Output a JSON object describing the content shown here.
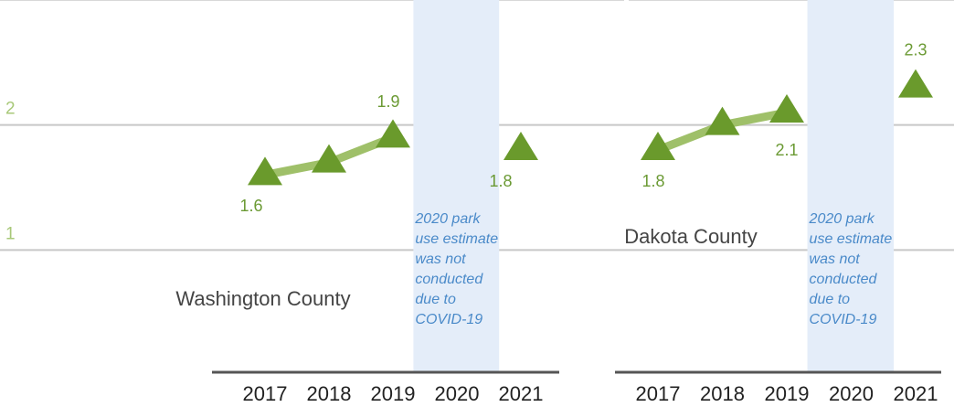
{
  "chart_data": [
    {
      "type": "line",
      "title": "Washington County",
      "categories": [
        "2017",
        "2018",
        "2019",
        "2020",
        "2021"
      ],
      "values": [
        1.6,
        1.7,
        1.9,
        null,
        1.8
      ],
      "value_labels": [
        "1.6",
        null,
        "1.9",
        null,
        "1.8"
      ],
      "color": "#6a9a2c",
      "line_color": "#9fc069",
      "annotation_lines": [
        "2020 park",
        "use estimate",
        "was not",
        "conducted",
        "due to",
        "COVID-19"
      ],
      "ylim": [
        0,
        3
      ],
      "yticks": [
        1,
        2
      ],
      "grid": true
    },
    {
      "type": "line",
      "title": "Dakota County",
      "categories": [
        "2017",
        "2018",
        "2019",
        "2020",
        "2021"
      ],
      "values": [
        1.8,
        2.0,
        2.1,
        null,
        2.3
      ],
      "value_labels": [
        "1.8",
        null,
        "2.1",
        null,
        "2.3"
      ],
      "color": "#6a9a2c",
      "line_color": "#9fc069",
      "annotation_lines": [
        "2020 park",
        "use estimate",
        "was not",
        "conducted",
        "due to",
        "COVID-19"
      ],
      "ylim": [
        0,
        3
      ],
      "grid": true
    }
  ]
}
